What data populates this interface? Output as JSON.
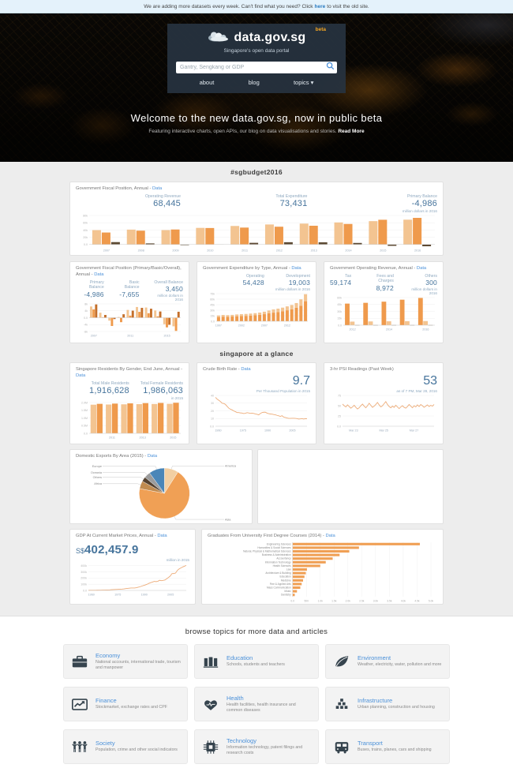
{
  "banner": {
    "text_before": "We are adding more datasets every week. Can't find what you need? Click",
    "link_text": "here",
    "text_after": "to visit the old site."
  },
  "header": {
    "logo_text": "data.gov.sg",
    "beta_label": "beta",
    "tagline": "Singapore's open data portal",
    "search_placeholder": "Gantry, Sengkang or GDP",
    "search_icon": "search-icon",
    "nav": [
      {
        "label": "about"
      },
      {
        "label": "blog"
      },
      {
        "label": "topics",
        "caret": "▾"
      }
    ]
  },
  "hero": {
    "title": "Welcome to the new data.gov.sg, now in public beta",
    "subtitle": "Featuring interactive charts, open APIs, our blog on data visualisations and stories.",
    "read_more": "Read More"
  },
  "sections": {
    "budget": "#sgbudget2016",
    "glance": "singapore at a glance",
    "topics": "browse topics for more data and articles"
  },
  "cards": {
    "fiscal_main": {
      "title": "Government Fiscal Position, Annual -",
      "link": "Data",
      "stats": [
        {
          "label": "Operating Revenue",
          "value": "68,445"
        },
        {
          "label": "Total Expenditure",
          "value": "73,431"
        },
        {
          "label": "Primary Balance",
          "value": "-4,986"
        }
      ],
      "note": "million dollars in 2016"
    },
    "fiscal_pbo": {
      "title": "Government Fiscal Position (Primary/Basic/Overall), Annual -",
      "link": "Data",
      "stats": [
        {
          "label": "Primary Balance",
          "value": "-4,986"
        },
        {
          "label": "Basic Balance",
          "value": "-7,655"
        },
        {
          "label": "Overall Balance",
          "value": "3,450"
        }
      ],
      "note": "million dollars in 2016"
    },
    "expenditure": {
      "title": "Government Expenditure by Type, Annual -",
      "link": "Data",
      "stats": [
        {
          "label": "Operating",
          "value": "54,428"
        },
        {
          "label": "Development",
          "value": "19,003"
        }
      ],
      "note": "million dollars in 2016"
    },
    "op_revenue": {
      "title": "Government Operating Revenue, Annual -",
      "link": "Data",
      "stats": [
        {
          "label": "Tax",
          "value": "59,174"
        },
        {
          "label": "Fees and Charges",
          "value": "8,972"
        },
        {
          "label": "Others",
          "value": "300"
        }
      ],
      "note": "million dollars in 2016"
    },
    "residents": {
      "title": "Singapore Residents By Gender, End June, Annual -",
      "link": "Data",
      "stats": [
        {
          "label": "Total Male Residents",
          "value": "1,916,628"
        },
        {
          "label": "Total Female Residents",
          "value": "1,986,063"
        }
      ],
      "note": "in 2015"
    },
    "birth_rate": {
      "title": "Crude Birth Rate -",
      "link": "Data",
      "value": "9.7",
      "note": "Per Thousand Population in 2015"
    },
    "psi": {
      "title": "3-hr PSI Readings (Past Week)",
      "value": "53",
      "note": "as of 7 PM, Mar 28, 2016"
    },
    "exports": {
      "title": "Domestic Exports By Area (2015) -",
      "link": "Data"
    },
    "gdp": {
      "title": "GDP At Current Market Prices, Annual -",
      "link": "Data",
      "prefix": "S$",
      "value": "402,457.9",
      "note": "million in 2015"
    },
    "graduates": {
      "title": "Graduates From University First Degree Courses (2014) -",
      "link": "Data"
    }
  },
  "charts": {
    "fiscal_main": {
      "type": "grouped_bar",
      "categories": [
        "2007",
        "2008",
        "2009",
        "2010",
        "2011",
        "2012",
        "2013",
        "2014",
        "2015",
        "2016"
      ],
      "series": [
        {
          "name": "Operating Revenue",
          "color": "#f3c491",
          "values": [
            39500,
            41000,
            39600,
            45800,
            51100,
            55200,
            57600,
            60800,
            64400,
            68445
          ]
        },
        {
          "name": "Total Expenditure",
          "color": "#ef9a4c",
          "values": [
            33000,
            38100,
            41300,
            45400,
            46600,
            49000,
            51700,
            56600,
            68200,
            73431
          ]
        },
        {
          "name": "Primary Balance",
          "color": "#5d4a33",
          "values": [
            6500,
            2900,
            -1700,
            400,
            4500,
            6200,
            5900,
            4200,
            -3800,
            -4986
          ]
        }
      ],
      "yticks": [
        0,
        20000,
        40000,
        60000,
        80000
      ],
      "ytick_labels": [
        "0.0",
        "20k",
        "40k",
        "60k",
        "80k"
      ],
      "xticks": [
        "2007",
        "2008",
        "2009",
        "2010",
        "2011",
        "2012",
        "2013",
        "2014",
        "2015",
        "2016"
      ]
    },
    "fiscal_pbo": {
      "type": "grouped_bar",
      "categories": [
        "2007",
        "2008",
        "2009",
        "2010",
        "2011",
        "2012",
        "2013",
        "2014",
        "2015",
        "2016"
      ],
      "series": [
        {
          "name": "Primary Balance",
          "color": "#f3c491",
          "values": [
            6500,
            2900,
            -1700,
            400,
            4500,
            6200,
            5900,
            4200,
            -3800,
            -4986
          ]
        },
        {
          "name": "Basic Balance",
          "color": "#ef9a4c",
          "values": [
            4800,
            300,
            -4800,
            -2600,
            1200,
            3400,
            2600,
            800,
            -5600,
            -7655
          ]
        },
        {
          "name": "Overall Balance",
          "color": "#c46f2a",
          "values": [
            7700,
            1600,
            -800,
            2000,
            4100,
            5700,
            5200,
            3600,
            -4100,
            3450
          ]
        }
      ],
      "yticks": [
        -8000,
        -4000,
        0,
        4000,
        8000
      ],
      "ytick_labels": [
        "-8k",
        "-4k",
        "0.0",
        "4k",
        "8k"
      ],
      "xticks": [
        "2007",
        "2011",
        "2015"
      ]
    },
    "expenditure": {
      "type": "stacked_bar",
      "categories": [
        "1997",
        "1998",
        "1999",
        "2000",
        "2001",
        "2002",
        "2003",
        "2004",
        "2005",
        "2006",
        "2007",
        "2008",
        "2009",
        "2010",
        "2011",
        "2012",
        "2013",
        "2014",
        "2015",
        "2016"
      ],
      "series": [
        {
          "name": "Operating",
          "color": "#ef9a4c",
          "values": [
            11500,
            12500,
            12200,
            12800,
            13600,
            14100,
            14600,
            15200,
            16100,
            17400,
            19200,
            21600,
            23400,
            25100,
            27300,
            29800,
            32400,
            36600,
            42300,
            54428
          ]
        },
        {
          "name": "Development",
          "color": "#f3c491",
          "values": [
            4200,
            4600,
            4300,
            4500,
            4900,
            5100,
            5300,
            5600,
            5900,
            6200,
            6800,
            7600,
            8600,
            9100,
            9700,
            10600,
            11700,
            12800,
            17200,
            19003
          ]
        }
      ],
      "yticks": [
        0,
        15000,
        30000,
        45000,
        60000,
        75000
      ],
      "ytick_labels": [
        "0.0",
        "15k",
        "30k",
        "45k",
        "60k",
        "75k"
      ],
      "xticks": [
        "1997",
        "2002",
        "2007",
        "2012"
      ]
    },
    "op_revenue": {
      "type": "grouped_bar",
      "categories": [
        "2012",
        "2013",
        "2014",
        "2015",
        "2016"
      ],
      "series": [
        {
          "name": "Tax",
          "color": "#ef9a4c",
          "values": [
            46900,
            48600,
            51100,
            55400,
            59174
          ]
        },
        {
          "name": "Fees and Charges",
          "color": "#f3c491",
          "values": [
            7800,
            8200,
            8500,
            8700,
            8972
          ]
        },
        {
          "name": "Others",
          "color": "#5d4a33",
          "values": [
            300,
            300,
            300,
            300,
            300
          ]
        }
      ],
      "yticks": [
        0,
        15000,
        30000,
        45000,
        60000
      ],
      "ytick_labels": [
        "0.0",
        "15k",
        "30k",
        "45k",
        "60k"
      ],
      "xticks": [
        "2012",
        "2014",
        "2016"
      ]
    },
    "residents": {
      "type": "grouped_bar",
      "categories": [
        "2010",
        "2011",
        "2012",
        "2013",
        "2014",
        "2015"
      ],
      "series": [
        {
          "name": "Total Male Residents",
          "color": "#f3c491",
          "values": [
            1861100,
            1873200,
            1884600,
            1896100,
            1906800,
            1916628
          ]
        },
        {
          "name": "Total Female Residents",
          "color": "#ef9a4c",
          "values": [
            1915500,
            1931600,
            1946700,
            1961700,
            1974000,
            1986063
          ]
        }
      ],
      "yticks": [
        0,
        500000,
        1000000,
        1500000,
        2000000
      ],
      "ytick_labels": [
        "0.0",
        "0.5M",
        "1.0M",
        "1.5M",
        "2.0M"
      ],
      "xticks": [
        "2011",
        "2013",
        "2015"
      ]
    },
    "birth_rate": {
      "type": "line",
      "color": "#edac79",
      "values": [
        37.5,
        35.2,
        33.7,
        32.1,
        29.9,
        29.5,
        28.3,
        25.8,
        23.5,
        22.1,
        21.2,
        19.9,
        18.9,
        17.8,
        17.8,
        17.3,
        17.1,
        16.5,
        16.9,
        17.6,
        17.3,
        16.7,
        17.0,
        16.6,
        16.0,
        15.5,
        14.8,
        16.6,
        17.8,
        18.2,
        18.2,
        17.0,
        16.4,
        15.9,
        15.7,
        15.2,
        14.8,
        14.1,
        13.5,
        12.8,
        13.7,
        11.8,
        11.4,
        10.7,
        10.2,
        10.2,
        10.3,
        10.3,
        10.2,
        9.9,
        9.3,
        9.5,
        9.9,
        9.3,
        9.8,
        9.7
      ],
      "ymin": 0,
      "ymax": 40,
      "yticks": [
        0,
        10,
        20,
        30,
        40
      ],
      "ytick_labels": [
        "0.0",
        "10",
        "20",
        "30",
        "40"
      ],
      "xticks": [
        [
          "1960",
          0.03
        ],
        [
          "1975",
          0.3
        ],
        [
          "1990",
          0.57
        ],
        [
          "2005",
          0.84
        ]
      ]
    },
    "psi": {
      "type": "line",
      "color": "#edac79",
      "values": [
        54,
        50,
        47,
        52,
        48,
        44,
        47,
        51,
        46,
        42,
        45,
        50,
        54,
        49,
        45,
        50,
        56,
        51,
        46,
        49,
        53,
        58,
        52,
        47,
        50,
        55,
        60,
        53,
        48,
        45,
        49,
        46,
        51,
        47,
        43,
        47,
        50,
        46,
        44,
        48,
        53,
        49,
        45,
        50,
        47,
        52,
        48,
        53,
        50,
        46,
        49,
        52,
        48,
        51,
        49,
        53
      ],
      "ymin": 0,
      "ymax": 75,
      "yticks": [
        0,
        25,
        50,
        75
      ],
      "ytick_labels": [
        "0.0",
        "25",
        "50",
        "75"
      ],
      "xticks": [
        [
          "Mar 23",
          0.12
        ],
        [
          "Mar 25",
          0.45
        ],
        [
          "Mar 27",
          0.78
        ]
      ]
    },
    "exports": {
      "type": "pie",
      "slices": [
        {
          "label": "America",
          "value": 9,
          "color": "#f2cfa2"
        },
        {
          "label": "Asia",
          "value": 69,
          "color": "#f0a055"
        },
        {
          "label": "Africa",
          "value": 5,
          "color": "#c08b50"
        },
        {
          "label": "Others",
          "value": 3,
          "color": "#554230"
        },
        {
          "label": "Oceania",
          "value": 4,
          "color": "#9b9b9b"
        },
        {
          "label": "Europe",
          "value": 10,
          "color": "#4a86b8"
        }
      ]
    },
    "gdp": {
      "type": "line",
      "color": "#edac79",
      "values": [
        2150,
        2300,
        2600,
        2900,
        3000,
        3200,
        3700,
        4300,
        5100,
        5800,
        6600,
        7800,
        9200,
        11500,
        13400,
        14900,
        16300,
        17900,
        19600,
        21700,
        25100,
        29300,
        32700,
        36000,
        39000,
        38900,
        39300,
        43500,
        51100,
        58900,
        70000,
        79000,
        87800,
        99100,
        113900,
        124600,
        134500,
        145900,
        141600,
        145600,
        163800,
        156600,
        160900,
        167600,
        188000,
        208800,
        232200,
        271600,
        271900,
        280000,
        322400,
        346400,
        362300,
        378200,
        390100,
        402458
      ],
      "ymin": 0,
      "ymax": 420000,
      "yticks": [
        0,
        100000,
        200000,
        300000,
        400000
      ],
      "ytick_labels": [
        "0.0",
        "100k",
        "200k",
        "300k",
        "400k"
      ],
      "xticks": [
        [
          "1960",
          0.03
        ],
        [
          "1975",
          0.3
        ],
        [
          "1990",
          0.57
        ],
        [
          "2005",
          0.84
        ]
      ]
    },
    "graduates": {
      "type": "hbar",
      "color": "#f0a055",
      "xmax": 5000,
      "categories": [
        "Engineering Sciences",
        "Humanities & Social Sciences",
        "Natural, Physical & Mathematical Sciences",
        "Business & Administration",
        "Accountancy",
        "Information Technology",
        "Health Sciences",
        "Law",
        "Architecture & Building",
        "Education",
        "Medicine",
        "Fine & Applied Arts",
        "Mass Communication",
        "Music",
        "Dentistry"
      ],
      "values": [
        4600,
        2400,
        2050,
        1700,
        1450,
        1200,
        1000,
        520,
        480,
        430,
        380,
        330,
        280,
        160,
        80
      ],
      "xticks": [
        "0.0",
        "500",
        "1.0k",
        "1.5k",
        "2.0k",
        "2.5k",
        "3.0k",
        "3.5k",
        "4.0k",
        "4.5k",
        "5.0k"
      ]
    }
  },
  "topics": [
    {
      "icon": "briefcase-icon",
      "title": "Economy",
      "desc": "National accounts, international trade, tourism and manpower"
    },
    {
      "icon": "books-icon",
      "title": "Education",
      "desc": "Schools, students and teachers"
    },
    {
      "icon": "leaf-icon",
      "title": "Environment",
      "desc": "Weather, electricity, water, pollution and more"
    },
    {
      "icon": "chart-icon",
      "title": "Finance",
      "desc": "Stockmarket, exchange rates and CPF"
    },
    {
      "icon": "heart-icon",
      "title": "Health",
      "desc": "Health facilities, health insurance and common diseases"
    },
    {
      "icon": "blocks-icon",
      "title": "Infrastructure",
      "desc": "Urban planning, construction and housing"
    },
    {
      "icon": "people-icon",
      "title": "Society",
      "desc": "Population, crime and other social indicators"
    },
    {
      "icon": "chip-icon",
      "title": "Technology",
      "desc": "Information technology, patent filings and research costs"
    },
    {
      "icon": "bus-icon",
      "title": "Transport",
      "desc": "Buses, trains, planes, cars and shipping"
    }
  ]
}
